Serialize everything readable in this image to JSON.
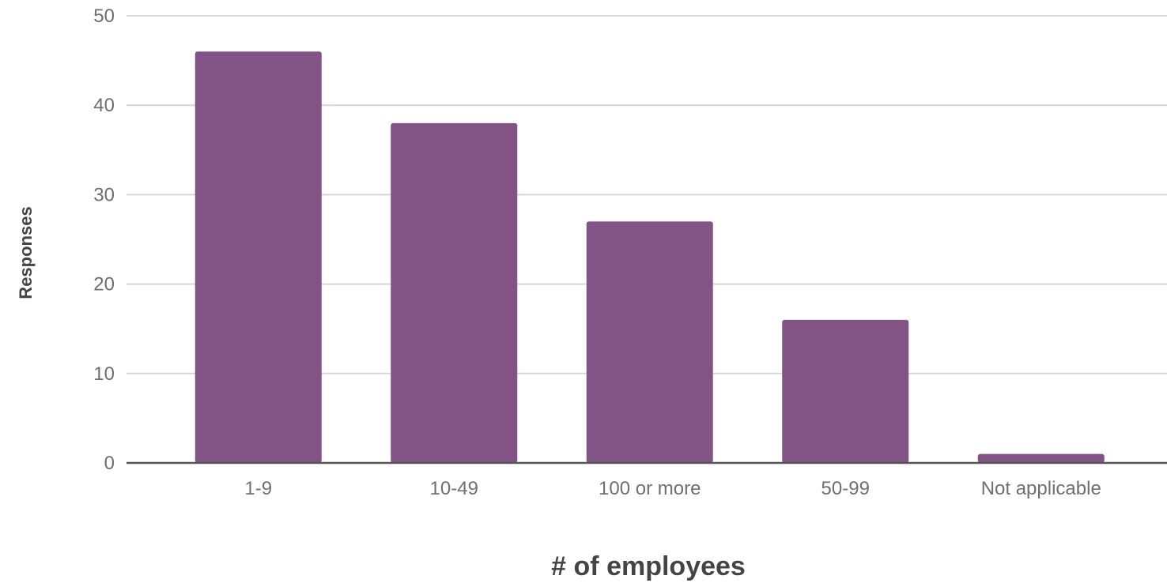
{
  "chart_data": {
    "type": "bar",
    "categories": [
      "1-9",
      "10-49",
      "100 or more",
      "50-99",
      "Not applicable"
    ],
    "values": [
      46,
      38,
      27,
      16,
      1
    ],
    "xlabel": "# of employees",
    "ylabel": "Responses",
    "ylim": [
      0,
      50
    ],
    "yticks": [
      "0",
      "10",
      "20",
      "30",
      "40",
      "50"
    ],
    "grid": true,
    "legend": "none",
    "colors": {
      "bar": "#825486",
      "grid": "#d6d6d6",
      "baseline": "#555555"
    }
  }
}
